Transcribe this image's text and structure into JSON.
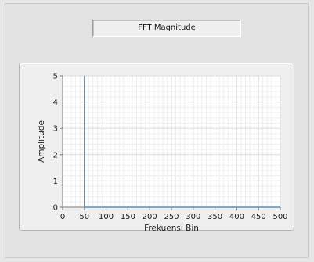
{
  "panel": {
    "title": "FFT Magnitude"
  },
  "chart_data": {
    "type": "line",
    "title": "FFT Magnitude",
    "xlabel": "Frekuensi Bin",
    "ylabel": "Amplitude",
    "xlim": [
      0,
      500
    ],
    "ylim": [
      0,
      5
    ],
    "x_ticks": [
      0,
      50,
      100,
      150,
      200,
      250,
      300,
      350,
      400,
      450,
      500
    ],
    "y_ticks": [
      0,
      1,
      2,
      3,
      4,
      5
    ],
    "grid": true,
    "series": [
      {
        "color": "#5b8fb9",
        "points": [
          [
            50,
            5
          ],
          [
            50,
            0
          ],
          [
            500,
            0
          ]
        ]
      }
    ],
    "colors": {
      "plot_bg": "#ffffff",
      "grid_major": "#dcdcdc",
      "grid_minor": "#efefef",
      "axis": "#7a7a7a"
    }
  }
}
